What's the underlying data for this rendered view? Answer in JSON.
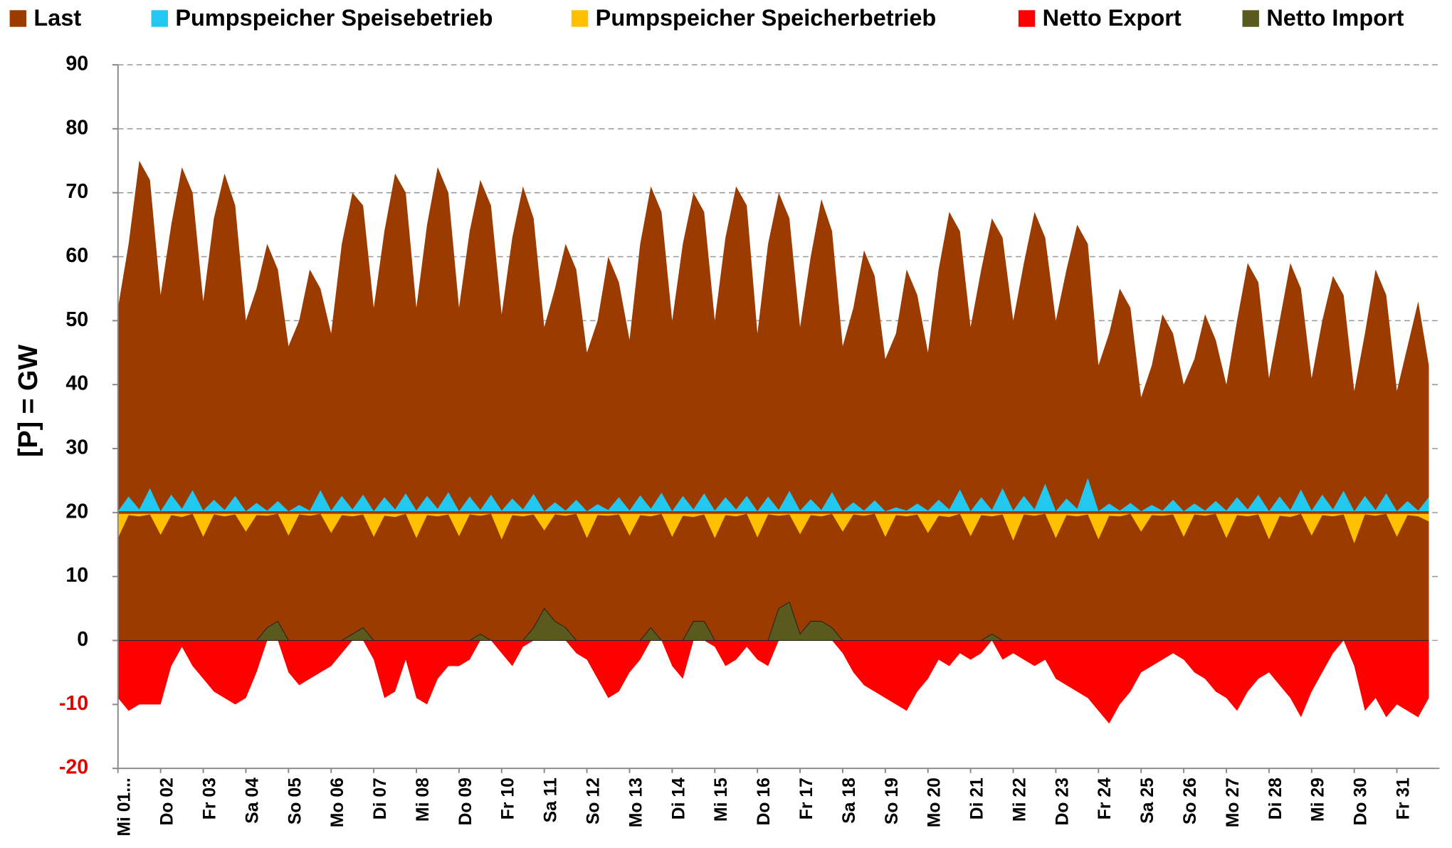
{
  "chart_data": {
    "type": "area",
    "y_label": "[P]  =  GW",
    "negative_tick_color": "#e00000",
    "categories": [
      "Mi 01...",
      null,
      null,
      null,
      "Do 02",
      null,
      null,
      null,
      "Fr 03",
      null,
      null,
      null,
      "Sa 04",
      null,
      null,
      null,
      "So 05",
      null,
      null,
      null,
      "Mo 06",
      null,
      null,
      null,
      "Di 07",
      null,
      null,
      null,
      "Mi 08",
      null,
      null,
      null,
      "Do 09",
      null,
      null,
      null,
      "Fr 10",
      null,
      null,
      null,
      "Sa 11",
      null,
      null,
      null,
      "So 12",
      null,
      null,
      null,
      "Mo 13",
      null,
      null,
      null,
      "Di 14",
      null,
      null,
      null,
      "Mi 15",
      null,
      null,
      null,
      "Do 16",
      null,
      null,
      null,
      "Fr 17",
      null,
      null,
      null,
      "Sa 18",
      null,
      null,
      null,
      "So 19",
      null,
      null,
      null,
      "Mo 20",
      null,
      null,
      null,
      "Di 21",
      null,
      null,
      null,
      "Mi 22",
      null,
      null,
      null,
      "Do 23",
      null,
      null,
      null,
      "Fr 24",
      null,
      null,
      null,
      "Sa 25",
      null,
      null,
      null,
      "So 26",
      null,
      null,
      null,
      "Mo 27",
      null,
      null,
      null,
      "Di 28",
      null,
      null,
      null,
      "Mi 29",
      null,
      null,
      null,
      "Do 30",
      null,
      null,
      null,
      "Fr 31",
      null,
      null,
      null
    ],
    "series": [
      {
        "name": "Last",
        "color": "#9c3b00",
        "values": [
          52,
          62,
          75,
          72,
          54,
          65,
          74,
          70,
          53,
          66,
          73,
          68,
          50,
          55,
          62,
          58,
          46,
          50,
          58,
          55,
          48,
          62,
          70,
          68,
          52,
          64,
          73,
          70,
          52,
          65,
          74,
          70,
          52,
          64,
          72,
          68,
          51,
          63,
          71,
          66,
          49,
          55,
          62,
          58,
          45,
          50,
          60,
          56,
          47,
          62,
          71,
          67,
          50,
          62,
          70,
          67,
          50,
          63,
          71,
          68,
          48,
          62,
          70,
          66,
          49,
          60,
          69,
          64,
          46,
          52,
          61,
          57,
          44,
          48,
          58,
          54,
          45,
          58,
          67,
          64,
          49,
          58,
          66,
          63,
          50,
          59,
          67,
          63,
          50,
          58,
          65,
          62,
          43,
          48,
          55,
          52,
          38,
          43,
          51,
          48,
          40,
          44,
          51,
          47,
          40,
          50,
          59,
          56,
          41,
          50,
          59,
          55,
          41,
          50,
          57,
          54,
          39,
          48,
          58,
          54,
          39,
          46,
          53,
          43
        ]
      },
      {
        "name": "Pumpspeicher Speisebetrieb",
        "color": "#22c8f0",
        "values": [
          20.2,
          22.5,
          20.5,
          23.8,
          20.2,
          22.8,
          20.6,
          23.5,
          20.3,
          22.0,
          20.4,
          22.6,
          20.2,
          21.5,
          20.3,
          21.8,
          20.2,
          21.2,
          20.3,
          23.5,
          20.3,
          22.6,
          20.5,
          22.8,
          20.2,
          22.4,
          20.5,
          23.0,
          20.3,
          22.6,
          20.6,
          23.2,
          20.2,
          22.5,
          20.4,
          22.8,
          20.3,
          22.2,
          20.5,
          22.9,
          20.2,
          21.6,
          20.3,
          22.0,
          20.2,
          21.3,
          20.4,
          22.4,
          20.3,
          22.7,
          20.6,
          23.1,
          20.2,
          22.6,
          20.5,
          23.0,
          20.3,
          22.4,
          20.5,
          22.6,
          20.2,
          22.5,
          20.4,
          23.4,
          20.3,
          22.1,
          20.4,
          23.2,
          20.2,
          21.6,
          20.3,
          21.9,
          20.2,
          20.8,
          20.3,
          21.4,
          20.3,
          22.0,
          20.5,
          23.6,
          20.2,
          22.4,
          20.4,
          23.8,
          20.3,
          22.6,
          20.5,
          24.5,
          20.2,
          22.2,
          20.6,
          25.4,
          20.2,
          21.4,
          20.3,
          21.5,
          20.2,
          21.2,
          20.3,
          22.0,
          20.2,
          21.4,
          20.3,
          21.8,
          20.3,
          22.4,
          20.5,
          22.8,
          20.2,
          22.5,
          20.4,
          23.6,
          20.3,
          22.8,
          20.5,
          23.4,
          20.2,
          22.6,
          20.4,
          23.0,
          20.2,
          21.8,
          20.3,
          22.4
        ]
      },
      {
        "name": "Pumpspeicher Speicherbetrieb",
        "color": "#ffc000",
        "values": [
          16.0,
          19.6,
          19.4,
          19.7,
          16.5,
          19.6,
          19.3,
          19.8,
          16.2,
          19.7,
          19.4,
          19.7,
          17.0,
          19.6,
          19.5,
          19.8,
          16.4,
          19.7,
          19.5,
          19.8,
          16.8,
          19.6,
          19.4,
          19.7,
          16.2,
          19.5,
          19.3,
          19.8,
          16.0,
          19.6,
          19.4,
          19.7,
          16.3,
          19.7,
          19.5,
          19.8,
          15.8,
          19.6,
          19.4,
          19.7,
          17.2,
          19.7,
          19.5,
          19.8,
          16.0,
          19.6,
          19.5,
          19.7,
          16.4,
          19.6,
          19.4,
          19.8,
          16.2,
          19.5,
          19.3,
          19.7,
          16.0,
          19.6,
          19.4,
          19.8,
          16.1,
          19.7,
          19.5,
          19.7,
          16.6,
          19.6,
          19.4,
          19.8,
          17.0,
          19.7,
          19.5,
          19.8,
          16.2,
          19.6,
          19.4,
          19.7,
          16.8,
          19.5,
          19.3,
          19.8,
          16.3,
          19.6,
          19.4,
          19.7,
          15.6,
          19.7,
          19.5,
          19.8,
          16.0,
          19.6,
          19.4,
          19.7,
          15.8,
          19.5,
          19.4,
          19.8,
          17.0,
          19.6,
          19.5,
          19.7,
          16.2,
          19.7,
          19.5,
          19.8,
          16.0,
          19.6,
          19.4,
          19.7,
          15.8,
          19.5,
          19.3,
          19.8,
          16.4,
          19.6,
          19.4,
          19.7,
          15.2,
          19.7,
          19.5,
          19.8,
          16.2,
          19.6,
          19.4,
          18.6
        ]
      },
      {
        "name": "Netto Export",
        "color": "#ff0000",
        "values": [
          -9,
          -11,
          -10,
          -10,
          -10,
          -4,
          -1,
          -4,
          -6,
          -8,
          -9,
          -10,
          -9,
          -5,
          0,
          0,
          -5,
          -7,
          -6,
          -5,
          -4,
          -2,
          0,
          0,
          -3,
          -9,
          -8,
          -3,
          -9,
          -10,
          -6,
          -4,
          -4,
          -3,
          0,
          0,
          -2,
          -4,
          -1,
          0,
          0,
          0,
          0,
          -2,
          -3,
          -6,
          -9,
          -8,
          -5,
          -3,
          0,
          0,
          -4,
          -6,
          0,
          0,
          -1,
          -4,
          -3,
          -1,
          -3,
          -4,
          0,
          0,
          0,
          0,
          0,
          0,
          -2,
          -5,
          -7,
          -8,
          -9,
          -10,
          -11,
          -8,
          -6,
          -3,
          -4,
          -2,
          -3,
          -2,
          0,
          -3,
          -2,
          -3,
          -4,
          -3,
          -6,
          -7,
          -8,
          -9,
          -11,
          -13,
          -10,
          -8,
          -5,
          -4,
          -3,
          -2,
          -3,
          -5,
          -6,
          -8,
          -9,
          -11,
          -8,
          -6,
          -5,
          -7,
          -9,
          -12,
          -8,
          -5,
          -2,
          0,
          -4,
          -11,
          -9,
          -12,
          -10,
          -11,
          -12,
          -9
        ]
      },
      {
        "name": "Netto Import",
        "color": "#5a5a1e",
        "values": [
          0,
          0,
          0,
          0,
          0,
          0,
          0,
          0,
          0,
          0,
          0,
          0,
          0,
          0,
          2,
          3,
          0,
          0,
          0,
          0,
          0,
          0,
          1,
          2,
          0,
          0,
          0,
          0,
          0,
          0,
          0,
          0,
          0,
          0,
          1,
          0,
          0,
          0,
          0,
          2,
          5,
          3,
          2,
          0,
          0,
          0,
          0,
          0,
          0,
          0,
          2,
          0,
          0,
          0,
          3,
          3,
          0,
          0,
          0,
          0,
          0,
          0,
          5,
          6,
          1,
          3,
          3,
          2,
          0,
          0,
          0,
          0,
          0,
          0,
          0,
          0,
          0,
          0,
          0,
          0,
          0,
          0,
          1,
          0,
          0,
          0,
          0,
          0,
          0,
          0,
          0,
          0,
          0,
          0,
          0,
          0,
          0,
          0,
          0,
          0,
          0,
          0,
          0,
          0,
          0,
          0,
          0,
          0,
          0,
          0,
          0,
          0,
          0,
          0,
          0,
          0,
          0,
          0,
          0,
          0,
          0,
          0,
          0,
          0
        ]
      }
    ],
    "ylim": [
      -20,
      90
    ],
    "yticks": [
      -20,
      -10,
      0,
      10,
      20,
      30,
      40,
      50,
      60,
      70,
      80,
      90
    ],
    "grid": true
  }
}
